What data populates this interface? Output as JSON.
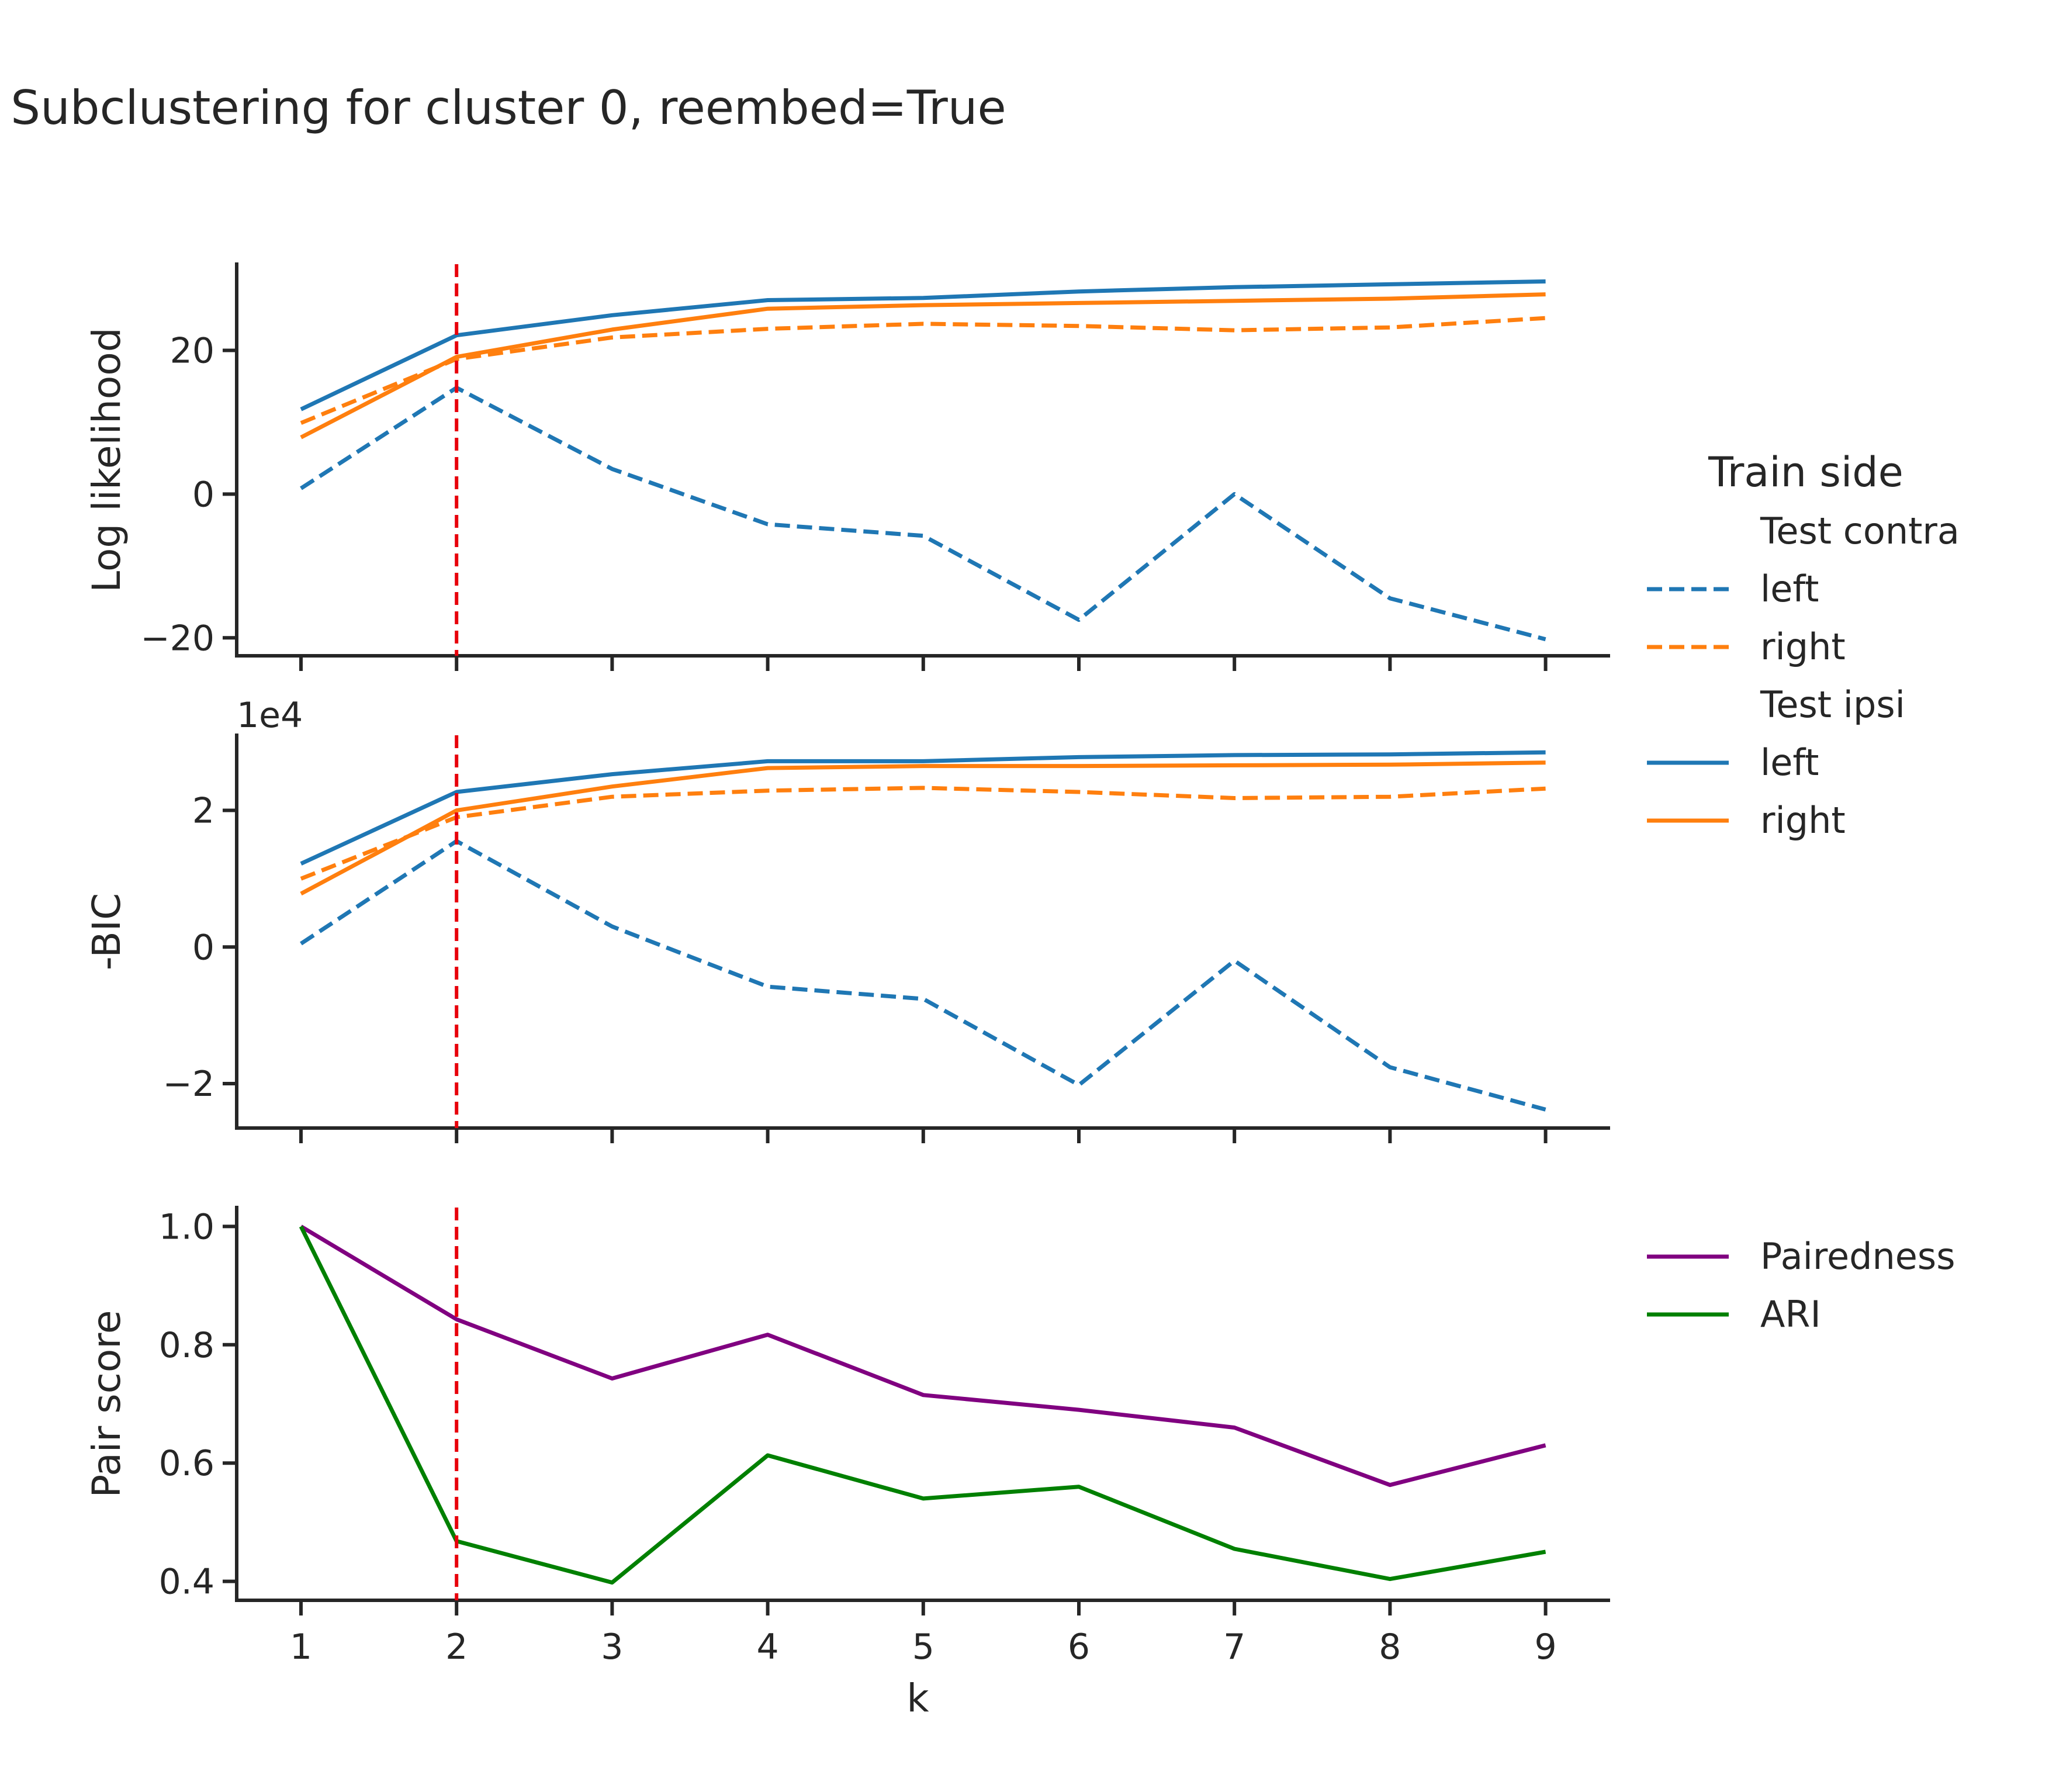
{
  "title": "Subclustering for cluster 0, reembed=True",
  "colors": {
    "left": "#1f77b4",
    "right": "#ff7f0e",
    "pairedness": "#800080",
    "ari": "#008000",
    "ref_line": "#e8000b"
  },
  "legend_top": {
    "title": "Train side",
    "groups": [
      {
        "heading": "Test contra",
        "style": "dashed",
        "entries": [
          {
            "label": "left",
            "color_key": "left"
          },
          {
            "label": "right",
            "color_key": "right"
          }
        ]
      },
      {
        "heading": "Test ipsi",
        "style": "solid",
        "entries": [
          {
            "label": "left",
            "color_key": "left"
          },
          {
            "label": "right",
            "color_key": "right"
          }
        ]
      }
    ]
  },
  "legend_bottom": {
    "entries": [
      {
        "label": "Pairedness",
        "color_key": "pairedness"
      },
      {
        "label": "ARI",
        "color_key": "ari"
      }
    ]
  },
  "chart_data": [
    {
      "type": "line",
      "ylabel": "Log likelihood",
      "xlabel": "",
      "x": [
        1,
        2,
        3,
        4,
        5,
        6,
        7,
        8,
        9
      ],
      "xlim": [
        0.6,
        9.4
      ],
      "ylim": [
        -22.5,
        32
      ],
      "yticks": [
        -20,
        0,
        20
      ],
      "ytick_labels": [
        "−20",
        "0",
        "20"
      ],
      "x_ticklabels_visible": false,
      "series": [
        {
          "name": "left",
          "group": "Test contra",
          "color_key": "left",
          "style": "dashed",
          "values": [
            0.8,
            14.8,
            3.5,
            -4.2,
            -5.8,
            -17.5,
            0,
            -14.5,
            -20.2
          ]
        },
        {
          "name": "right",
          "group": "Test contra",
          "color_key": "right",
          "style": "dashed",
          "values": [
            9.9,
            18.8,
            21.8,
            23.0,
            23.7,
            23.4,
            22.8,
            23.2,
            24.5
          ]
        },
        {
          "name": "left",
          "group": "Test ipsi",
          "color_key": "left",
          "style": "solid",
          "values": [
            11.8,
            22.1,
            24.9,
            27.0,
            27.3,
            28.2,
            28.8,
            29.2,
            29.6
          ]
        },
        {
          "name": "right",
          "group": "Test ipsi",
          "color_key": "right",
          "style": "solid",
          "values": [
            7.9,
            19.1,
            22.9,
            25.8,
            26.3,
            26.6,
            26.9,
            27.2,
            27.8
          ]
        }
      ],
      "vline_x": 2
    },
    {
      "type": "line",
      "ylabel": "-BIC",
      "xlabel": "",
      "offset_label": "1e4",
      "x": [
        1,
        2,
        3,
        4,
        5,
        6,
        7,
        8,
        9
      ],
      "xlim": [
        0.6,
        9.4
      ],
      "ylim": [
        -2.65,
        3.1
      ],
      "yticks": [
        -2,
        0,
        2
      ],
      "ytick_labels": [
        "−2",
        "0",
        "2"
      ],
      "x_ticklabels_visible": false,
      "series": [
        {
          "name": "left",
          "group": "Test contra",
          "color_key": "left",
          "style": "dashed",
          "values": [
            0.05,
            1.55,
            0.3,
            -0.58,
            -0.76,
            -2.02,
            -0.2,
            -1.76,
            -2.38
          ]
        },
        {
          "name": "right",
          "group": "Test contra",
          "color_key": "right",
          "style": "dashed",
          "values": [
            1.0,
            1.9,
            2.2,
            2.29,
            2.33,
            2.27,
            2.18,
            2.2,
            2.32
          ]
        },
        {
          "name": "left",
          "group": "Test ipsi",
          "color_key": "left",
          "style": "solid",
          "values": [
            1.22,
            2.27,
            2.53,
            2.72,
            2.72,
            2.78,
            2.81,
            2.82,
            2.85
          ]
        },
        {
          "name": "right",
          "group": "Test ipsi",
          "color_key": "right",
          "style": "solid",
          "values": [
            0.78,
            2.0,
            2.35,
            2.62,
            2.65,
            2.65,
            2.66,
            2.67,
            2.7
          ]
        }
      ],
      "vline_x": 2
    },
    {
      "type": "line",
      "ylabel": "Pair score",
      "xlabel": "k",
      "x": [
        1,
        2,
        3,
        4,
        5,
        6,
        7,
        8,
        9
      ],
      "xlim": [
        0.6,
        9.4
      ],
      "ylim": [
        0.368,
        1.032
      ],
      "yticks": [
        0.4,
        0.6,
        0.8,
        1.0
      ],
      "ytick_labels": [
        "0.4",
        "0.6",
        "0.8",
        "1.0"
      ],
      "xtick_labels": [
        "1",
        "2",
        "3",
        "4",
        "5",
        "6",
        "7",
        "8",
        "9"
      ],
      "x_ticklabels_visible": true,
      "series": [
        {
          "name": "Pairedness",
          "color_key": "pairedness",
          "style": "solid",
          "values": [
            1.0,
            0.843,
            0.743,
            0.817,
            0.715,
            0.69,
            0.66,
            0.563,
            0.63
          ]
        },
        {
          "name": "ARI",
          "color_key": "ari",
          "style": "solid",
          "values": [
            1.0,
            0.468,
            0.398,
            0.613,
            0.54,
            0.56,
            0.455,
            0.404,
            0.45
          ]
        }
      ],
      "vline_x": 2
    }
  ]
}
